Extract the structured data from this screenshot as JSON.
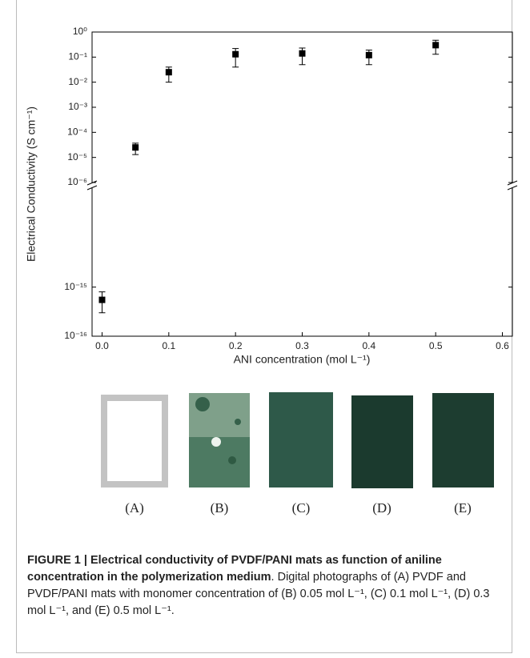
{
  "chart_data": {
    "type": "scatter",
    "xlabel": "ANI concentration (mol L⁻¹)",
    "ylabel": "Electrical Conductivity (S cm⁻¹)",
    "x": [
      0.0,
      0.05,
      0.1,
      0.2,
      0.3,
      0.4,
      0.5
    ],
    "values": [
      5.5e-16,
      2.5e-05,
      0.025,
      0.13,
      0.14,
      0.12,
      0.3
    ],
    "errors": [
      2.5e-16,
      1.2e-05,
      0.015,
      0.09,
      0.09,
      0.07,
      0.17
    ],
    "color": "#000000",
    "log_y": true,
    "xlim": [
      -0.015,
      0.615
    ],
    "xticks": [
      {
        "value": 0,
        "label": "0.0"
      },
      0.1,
      0.2,
      0.3,
      0.4,
      0.5,
      0.6
    ],
    "ylim": [
      1e-16,
      1
    ],
    "ybreak": [
      1e-13,
      1e-06
    ],
    "yticks": [
      {
        "value": 1e-16,
        "label": "10⁻¹⁶"
      },
      {
        "value": 1e-15,
        "label": "10⁻¹⁵"
      },
      {
        "value": 1e-06,
        "label": "10⁻⁶"
      },
      {
        "value": 1e-05,
        "label": "10⁻⁵"
      },
      {
        "value": 0.0001,
        "label": "10⁻⁴"
      },
      {
        "value": 0.001,
        "label": "10⁻³"
      },
      {
        "value": 0.01,
        "label": "10⁻²"
      },
      {
        "value": 0.1,
        "label": "10⁻¹"
      },
      {
        "value": 1,
        "label": "10⁰"
      }
    ]
  },
  "panels": [
    "(A)",
    "(B)",
    "(C)",
    "(D)",
    "(E)"
  ],
  "caption": {
    "bold": "FIGURE 1 | Electrical conductivity of PVDF/PANI mats as function of aniline concentration in the polymerization medium",
    "text": ". Digital photographs of (A) PVDF and PVDF/PANI mats with monomer concentration of (B) 0.05 mol L⁻¹, (C) 0.1 mol L⁻¹, (D) 0.3 mol L⁻¹, and (E) 0.5 mol L⁻¹."
  }
}
